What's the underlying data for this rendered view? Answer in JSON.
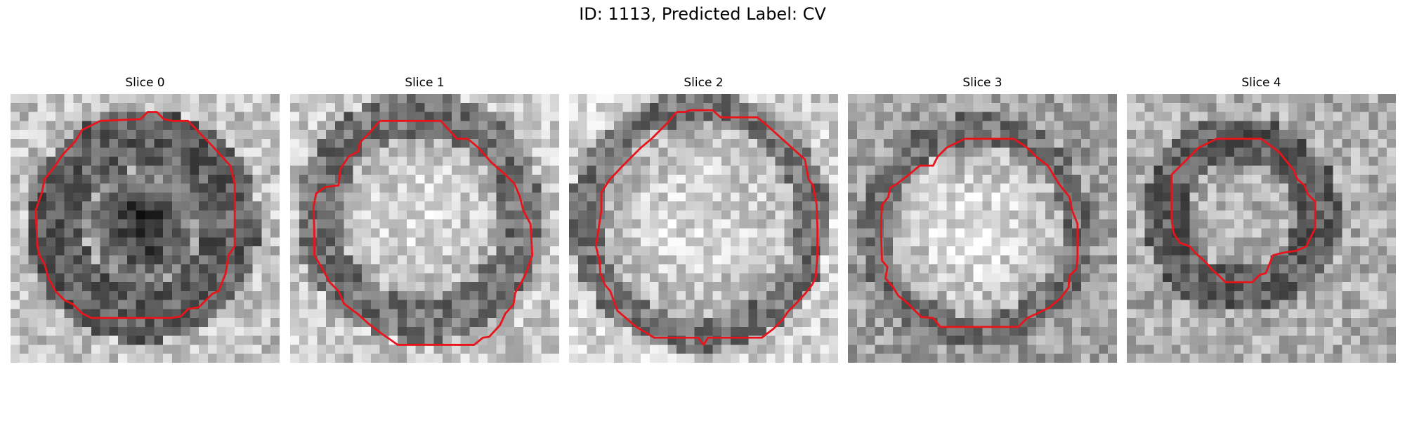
{
  "figure": {
    "title": "ID: 1113, Predicted Label: CV"
  },
  "contour_color": "#e8141b",
  "panels": [
    {
      "title": "Slice 0",
      "layout": {
        "cx": 14.7,
        "cy": 14.7,
        "radius": 11.5,
        "core_radius": 6.5,
        "rim": 0.62,
        "core": 0.8,
        "background": 0.74,
        "seed": 11
      },
      "contour": [
        [
          10,
          3
        ],
        [
          14.5,
          2.8
        ],
        [
          15.3,
          2
        ],
        [
          16.3,
          2
        ],
        [
          17.1,
          2.8
        ],
        [
          18,
          3
        ],
        [
          19.8,
          3
        ],
        [
          22.5,
          5.8
        ],
        [
          24.5,
          8
        ],
        [
          25,
          10
        ],
        [
          25,
          17
        ],
        [
          24.3,
          18
        ],
        [
          24,
          20
        ],
        [
          23.2,
          22
        ],
        [
          22.5,
          22.3
        ],
        [
          21,
          23.8
        ],
        [
          19.8,
          24
        ],
        [
          19,
          24.8
        ],
        [
          18,
          25
        ],
        [
          12,
          25
        ],
        [
          9,
          25
        ],
        [
          8,
          24.5
        ],
        [
          7,
          23.5
        ],
        [
          6,
          23
        ],
        [
          5,
          22
        ],
        [
          4.2,
          20.5
        ],
        [
          3.8,
          19
        ],
        [
          3.2,
          18
        ],
        [
          3,
          17
        ],
        [
          2.8,
          13
        ],
        [
          3.5,
          11
        ],
        [
          3.8,
          9.5
        ],
        [
          5,
          8
        ],
        [
          5.7,
          6.9
        ],
        [
          7.2,
          5.3
        ],
        [
          8,
          4
        ],
        [
          10,
          3
        ]
      ]
    },
    {
      "title": "Slice 1",
      "layout": {
        "cx": 14.5,
        "cy": 13.8,
        "radius": 12.5,
        "core_radius": 9,
        "rim": 0.55,
        "core": 0.15,
        "background": 0.72,
        "seed": 23
      },
      "contour": [
        [
          10,
          3
        ],
        [
          16.8,
          3
        ],
        [
          18.6,
          5
        ],
        [
          19.8,
          5
        ],
        [
          21,
          6
        ],
        [
          22.4,
          7.6
        ],
        [
          24,
          9
        ],
        [
          25,
          10
        ],
        [
          25.6,
          11.4
        ],
        [
          26,
          13
        ],
        [
          26.8,
          14.5
        ],
        [
          27,
          18
        ],
        [
          26.3,
          20
        ],
        [
          25.8,
          21
        ],
        [
          25.1,
          22.2
        ],
        [
          24.9,
          23.5
        ],
        [
          24,
          24.5
        ],
        [
          23.4,
          25.8
        ],
        [
          22.2,
          27.1
        ],
        [
          21.5,
          27.2
        ],
        [
          20.5,
          28
        ],
        [
          15,
          28
        ],
        [
          12,
          28
        ],
        [
          11,
          27.3
        ],
        [
          10,
          26.6
        ],
        [
          8.7,
          25.6
        ],
        [
          7.6,
          24.6
        ],
        [
          6,
          23.4
        ],
        [
          5.4,
          22
        ],
        [
          4.4,
          21
        ],
        [
          3.6,
          19.5
        ],
        [
          2.7,
          18
        ],
        [
          2.7,
          15.5
        ],
        [
          2.6,
          12.6
        ],
        [
          2.9,
          11.1
        ],
        [
          3.9,
          10.4
        ],
        [
          5.4,
          10.2
        ],
        [
          5.6,
          8.4
        ],
        [
          6.5,
          7
        ],
        [
          7.6,
          6.4
        ],
        [
          7.8,
          5.4
        ],
        [
          8.8,
          4.4
        ],
        [
          10,
          3
        ]
      ]
    },
    {
      "title": "Slice 2",
      "layout": {
        "cx": 14.5,
        "cy": 14.2,
        "radius": 13.0,
        "core_radius": 11,
        "rim": 0.55,
        "core": 0.15,
        "background": 0.68,
        "seed": 37
      },
      "contour": [
        [
          12,
          2
        ],
        [
          13,
          2
        ],
        [
          13.5,
          1.8
        ],
        [
          16,
          1.8
        ],
        [
          16.9,
          2.6
        ],
        [
          18,
          2.6
        ],
        [
          21,
          2.6
        ],
        [
          22.3,
          3.7
        ],
        [
          24.3,
          5.5
        ],
        [
          26.3,
          7.3
        ],
        [
          26.7,
          9.5
        ],
        [
          27.2,
          10.2
        ],
        [
          27.6,
          12.3
        ],
        [
          27.7,
          15
        ],
        [
          27.7,
          18
        ],
        [
          27.5,
          20.5
        ],
        [
          27.1,
          21.3
        ],
        [
          26.4,
          22.2
        ],
        [
          25.4,
          23.3
        ],
        [
          24.4,
          24.3
        ],
        [
          23.8,
          25.2
        ],
        [
          22.8,
          26.2
        ],
        [
          21.5,
          27.2
        ],
        [
          19,
          27.2
        ],
        [
          17,
          27.2
        ],
        [
          15.5,
          27.2
        ],
        [
          15,
          28
        ],
        [
          14.4,
          27.2
        ],
        [
          13,
          27.2
        ],
        [
          9.5,
          27.2
        ],
        [
          7.5,
          26
        ],
        [
          5.4,
          24.2
        ],
        [
          4.6,
          22
        ],
        [
          4,
          21.3
        ],
        [
          3.5,
          20
        ],
        [
          3.4,
          18.6
        ],
        [
          3,
          17
        ],
        [
          3.6,
          13
        ],
        [
          3.6,
          11
        ],
        [
          4.5,
          9.6
        ],
        [
          6,
          8
        ],
        [
          7,
          7
        ],
        [
          8,
          6
        ],
        [
          9.2,
          5
        ],
        [
          11,
          3.2
        ],
        [
          12,
          2
        ]
      ]
    },
    {
      "title": "Slice 3",
      "layout": {
        "cx": 14.3,
        "cy": 15.2,
        "radius": 11.5,
        "core_radius": 9.5,
        "rim": 0.55,
        "core": 0.12,
        "background": 0.88,
        "seed": 53
      },
      "contour": [
        [
          13,
          5
        ],
        [
          18.5,
          5
        ],
        [
          20,
          6
        ],
        [
          21,
          7
        ],
        [
          22.3,
          8
        ],
        [
          23.5,
          10
        ],
        [
          24.7,
          11.5
        ],
        [
          25,
          13
        ],
        [
          25.6,
          14.5
        ],
        [
          25.6,
          15.5
        ],
        [
          25.6,
          18
        ],
        [
          25.5,
          19.5
        ],
        [
          24.7,
          20.3
        ],
        [
          24.6,
          21.6
        ],
        [
          23.7,
          22.8
        ],
        [
          22.5,
          23.8
        ],
        [
          21.1,
          24.5
        ],
        [
          20,
          25
        ],
        [
          19,
          26
        ],
        [
          17,
          26
        ],
        [
          14,
          26
        ],
        [
          10.3,
          26
        ],
        [
          9.5,
          25
        ],
        [
          8.2,
          24.9
        ],
        [
          7.5,
          24.2
        ],
        [
          6.7,
          23.4
        ],
        [
          5.6,
          22.5
        ],
        [
          5,
          21.5
        ],
        [
          4.2,
          20.6
        ],
        [
          4.4,
          19.3
        ],
        [
          3.8,
          18.6
        ],
        [
          3.7,
          16
        ],
        [
          3.7,
          14
        ],
        [
          3.8,
          12.4
        ],
        [
          4.5,
          11.5
        ],
        [
          4.7,
          10.5
        ],
        [
          5.5,
          10
        ],
        [
          6.8,
          9
        ],
        [
          8,
          8
        ],
        [
          9.5,
          8
        ],
        [
          10,
          7
        ],
        [
          11,
          6
        ],
        [
          12,
          5.5
        ],
        [
          13,
          5
        ]
      ]
    },
    {
      "title": "Slice 4",
      "layout": {
        "cx": 12.8,
        "cy": 13.5,
        "radius": 9.5,
        "core_radius": 6,
        "rim": 0.62,
        "core": 0.3,
        "background": 0.82,
        "seed": 71
      },
      "contour": [
        [
          10,
          5
        ],
        [
          15,
          5
        ],
        [
          16.2,
          5.9
        ],
        [
          17,
          6.5
        ],
        [
          17.8,
          7.5
        ],
        [
          18.6,
          8.5
        ],
        [
          19,
          9.5
        ],
        [
          19.8,
          10.2
        ],
        [
          20.2,
          11.2
        ],
        [
          21,
          12
        ],
        [
          21,
          14
        ],
        [
          21,
          15
        ],
        [
          20.5,
          16
        ],
        [
          20,
          17
        ],
        [
          18.9,
          17.5
        ],
        [
          17.5,
          17.7
        ],
        [
          16.3,
          18
        ],
        [
          15.9,
          19
        ],
        [
          15.5,
          20
        ],
        [
          14.8,
          20.2
        ],
        [
          14,
          21
        ],
        [
          13,
          21
        ],
        [
          12.2,
          21
        ],
        [
          11,
          21
        ],
        [
          10.2,
          20.2
        ],
        [
          9.6,
          19.7
        ],
        [
          9,
          19
        ],
        [
          8.5,
          18.5
        ],
        [
          7.7,
          17.8
        ],
        [
          7,
          17
        ],
        [
          5.9,
          16.6
        ],
        [
          5.2,
          15.5
        ],
        [
          5,
          14
        ],
        [
          5,
          11
        ],
        [
          5,
          9
        ],
        [
          6,
          8
        ],
        [
          7,
          7
        ],
        [
          8,
          6
        ],
        [
          9,
          5.5
        ],
        [
          10,
          5
        ]
      ]
    }
  ]
}
